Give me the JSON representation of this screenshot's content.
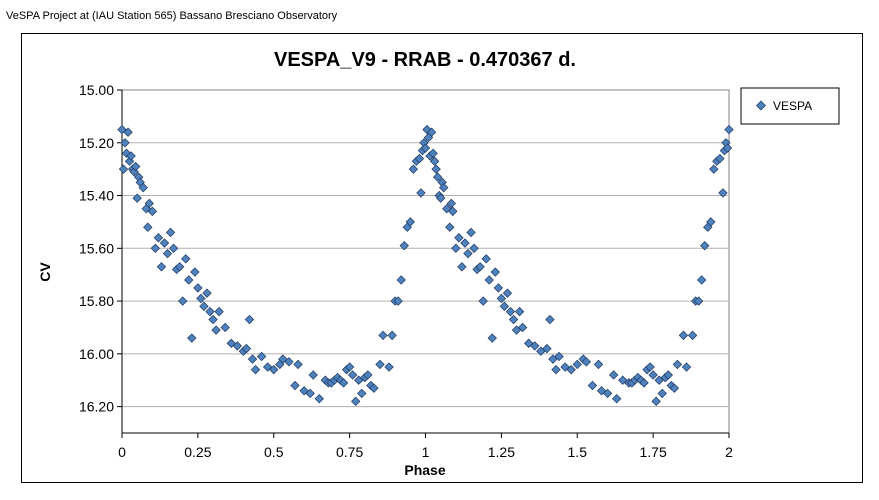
{
  "caption": "VeSPA Project at (IAU Station 565) Bassano Bresciano Observatory",
  "chart_data": {
    "type": "scatter",
    "title": "VESPA_V9 - RRAB - 0.470367 d.",
    "xlabel": "Phase",
    "ylabel": "CV",
    "xlim": [
      0,
      2
    ],
    "ylim": [
      15.0,
      16.3
    ],
    "y_inverted": true,
    "x_ticks": [
      0,
      0.25,
      0.5,
      0.75,
      1,
      1.25,
      1.5,
      1.75,
      2
    ],
    "x_tick_labels": [
      "0",
      "0.25",
      "0.5",
      "0.75",
      "1",
      "1.25",
      "1.5",
      "1.75",
      "2"
    ],
    "y_ticks": [
      15.0,
      15.2,
      15.4,
      15.6,
      15.8,
      16.0,
      16.2
    ],
    "y_tick_labels": [
      "15.00",
      "15.20",
      "15.40",
      "15.60",
      "15.80",
      "16.00",
      "16.20"
    ],
    "grid": "horizontal",
    "legend": "top-right",
    "marker_color": "#4f81bd",
    "marker_edge": "#1f3a60",
    "series": [
      {
        "name": "VESPA",
        "x": [
          0.0,
          0.005,
          0.01,
          0.015,
          0.02,
          0.025,
          0.03,
          0.035,
          0.04,
          0.045,
          0.05,
          0.055,
          0.06,
          0.07,
          0.08,
          0.085,
          0.09,
          0.1,
          0.11,
          0.12,
          0.13,
          0.14,
          0.15,
          0.16,
          0.17,
          0.18,
          0.19,
          0.2,
          0.21,
          0.22,
          0.23,
          0.24,
          0.25,
          0.26,
          0.27,
          0.28,
          0.29,
          0.3,
          0.31,
          0.32,
          0.34,
          0.36,
          0.38,
          0.4,
          0.41,
          0.42,
          0.43,
          0.44,
          0.46,
          0.48,
          0.5,
          0.52,
          0.53,
          0.55,
          0.57,
          0.58,
          0.6,
          0.62,
          0.63,
          0.65,
          0.67,
          0.68,
          0.69,
          0.7,
          0.71,
          0.72,
          0.73,
          0.74,
          0.75,
          0.76,
          0.77,
          0.78,
          0.79,
          0.8,
          0.81,
          0.82,
          0.83,
          0.85,
          0.86,
          0.88,
          0.89,
          0.9,
          0.91,
          0.92,
          0.93,
          0.94,
          0.95,
          0.96,
          0.97,
          0.98,
          0.985,
          0.99,
          0.995,
          1.0,
          1.005,
          1.01,
          1.015,
          1.02,
          1.025,
          1.03,
          1.035,
          1.04,
          1.045,
          1.05,
          1.055,
          1.06,
          1.07,
          1.08,
          1.085,
          1.09,
          1.1,
          1.11,
          1.12,
          1.13,
          1.14,
          1.15,
          1.16,
          1.17,
          1.18,
          1.19,
          1.2,
          1.21,
          1.22,
          1.23,
          1.24,
          1.25,
          1.26,
          1.27,
          1.28,
          1.29,
          1.3,
          1.31,
          1.32,
          1.34,
          1.36,
          1.38,
          1.4,
          1.41,
          1.42,
          1.43,
          1.44,
          1.46,
          1.48,
          1.5,
          1.52,
          1.53,
          1.55,
          1.57,
          1.58,
          1.6,
          1.62,
          1.63,
          1.65,
          1.67,
          1.68,
          1.69,
          1.7,
          1.71,
          1.72,
          1.73,
          1.74,
          1.75,
          1.76,
          1.77,
          1.78,
          1.79,
          1.8,
          1.81,
          1.82,
          1.83,
          1.85,
          1.86,
          1.88,
          1.89,
          1.9,
          1.91,
          1.92,
          1.93,
          1.94,
          1.95,
          1.96,
          1.97,
          1.98,
          1.985,
          1.99,
          1.995,
          2.0
        ],
        "y": [
          15.15,
          15.3,
          15.2,
          15.24,
          15.16,
          15.27,
          15.25,
          15.3,
          15.31,
          15.29,
          15.41,
          15.33,
          15.35,
          15.37,
          15.45,
          15.52,
          15.43,
          15.46,
          15.6,
          15.56,
          15.67,
          15.58,
          15.62,
          15.54,
          15.6,
          15.68,
          15.67,
          15.8,
          15.64,
          15.72,
          15.94,
          15.69,
          15.75,
          15.79,
          15.82,
          15.77,
          15.84,
          15.87,
          15.91,
          15.84,
          15.9,
          15.96,
          15.97,
          15.99,
          15.98,
          15.87,
          16.02,
          16.06,
          16.01,
          16.05,
          16.06,
          16.04,
          16.02,
          16.03,
          16.12,
          16.04,
          16.14,
          16.15,
          16.08,
          16.17,
          16.1,
          16.11,
          16.11,
          16.1,
          16.09,
          16.1,
          16.11,
          16.06,
          16.05,
          16.08,
          16.18,
          16.1,
          16.15,
          16.09,
          16.08,
          16.12,
          16.13,
          16.04,
          15.93,
          16.05,
          15.93,
          15.8,
          15.8,
          15.72,
          15.59,
          15.52,
          15.5,
          15.3,
          15.27,
          15.26,
          15.39,
          15.23,
          15.2,
          15.22,
          15.15,
          15.18,
          15.25,
          15.16,
          15.24,
          15.27,
          15.3,
          15.33,
          15.4,
          15.41,
          15.35,
          15.37,
          15.45,
          15.52,
          15.43,
          15.46,
          15.6,
          15.56,
          15.67,
          15.58,
          15.62,
          15.54,
          15.6,
          15.68,
          15.67,
          15.8,
          15.64,
          15.72,
          15.94,
          15.69,
          15.75,
          15.79,
          15.82,
          15.77,
          15.84,
          15.87,
          15.91,
          15.84,
          15.9,
          15.96,
          15.97,
          15.99,
          15.98,
          15.87,
          16.02,
          16.06,
          16.01,
          16.05,
          16.06,
          16.04,
          16.02,
          16.03,
          16.12,
          16.04,
          16.14,
          16.15,
          16.08,
          16.17,
          16.1,
          16.11,
          16.11,
          16.1,
          16.09,
          16.1,
          16.11,
          16.06,
          16.05,
          16.08,
          16.18,
          16.1,
          16.15,
          16.09,
          16.08,
          16.12,
          16.13,
          16.04,
          15.93,
          16.05,
          15.93,
          15.8,
          15.8,
          15.72,
          15.59,
          15.52,
          15.5,
          15.3,
          15.27,
          15.26,
          15.39,
          15.23,
          15.2,
          15.22,
          15.15
        ]
      }
    ]
  }
}
